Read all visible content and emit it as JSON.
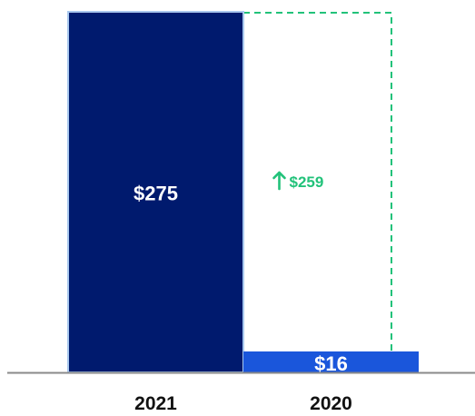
{
  "chart_data": {
    "type": "bar",
    "categories": [
      "2021",
      "2020"
    ],
    "values": [
      275,
      16
    ],
    "data_labels": [
      "$275",
      "$16"
    ],
    "ylim": [
      0,
      275
    ],
    "grid": false,
    "annotation": {
      "text": "$259",
      "direction": "up",
      "from_category": "2020",
      "to_value": 275
    }
  },
  "colors": {
    "bar_2021": "#001a6e",
    "bar_2021_edge": "#a9c8ee",
    "bar_2020": "#1a56db",
    "increase": "#22c27a",
    "label_light": "#ffffff",
    "axis": "#8a8a8a",
    "category_text": "#111111"
  }
}
